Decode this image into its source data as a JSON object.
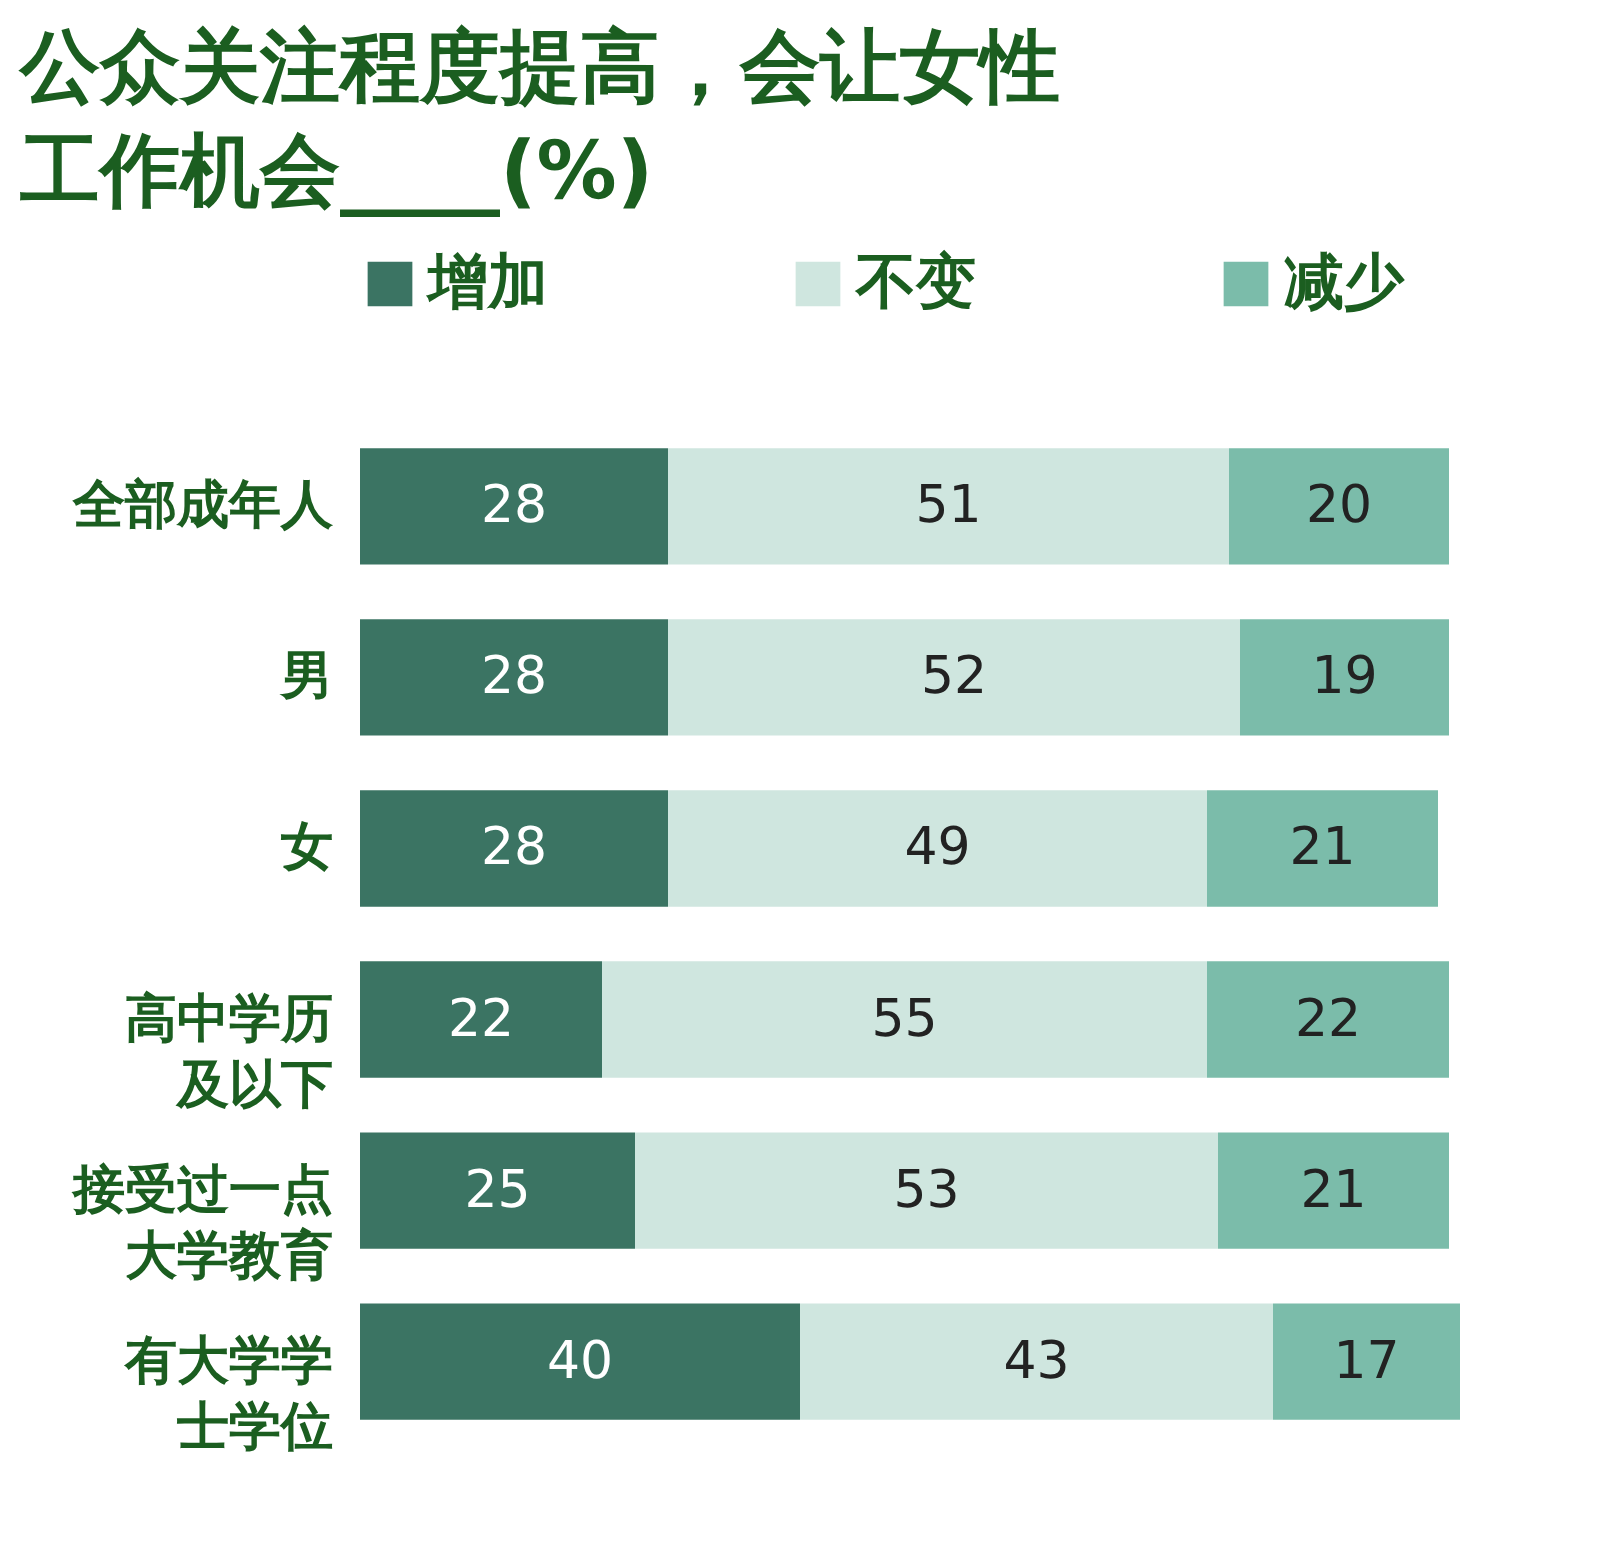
{
  "chart_data": {
    "type": "bar",
    "orientation": "horizontal",
    "stacked": true,
    "title": "公众关注程度提高，会让女性工作机会____(%)",
    "categories": [
      "全部成年人",
      "男",
      "女",
      "高中学历及以下",
      "接受过一点大学教育",
      "有大学学士学位"
    ],
    "series": [
      {
        "name": "增加",
        "color": "#3b7463",
        "values": [
          28,
          28,
          28,
          22,
          25,
          40
        ]
      },
      {
        "name": "不变",
        "color": "#cfe6df",
        "values": [
          51,
          52,
          49,
          55,
          53,
          43
        ]
      },
      {
        "name": "减少",
        "color": "#7bbcaa",
        "values": [
          20,
          19,
          21,
          22,
          21,
          17
        ]
      }
    ],
    "xlim": [
      0,
      100
    ],
    "data_labels": true,
    "legend": "top",
    "tick_labels": "y"
  }
}
